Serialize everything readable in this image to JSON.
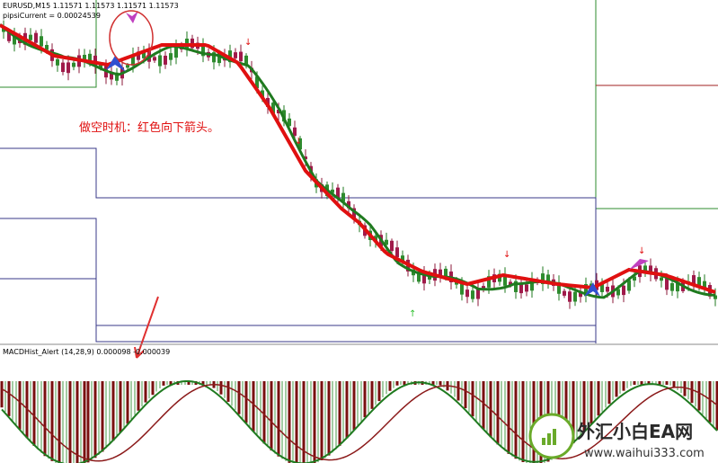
{
  "header": {
    "symbol_line": "EURUSD,M15  1.11571 1.11573 1.11571 1.11573",
    "indicator_line": "pipsiCurrent = 0.00024539"
  },
  "annotation": "做空时机：红色向下箭头。",
  "subwindow": {
    "label": "MACDHist_Alert (14,28,9)  0.000098 -0.000039"
  },
  "watermark": {
    "name": "外汇小白EA网",
    "url": "www.waihui333.com"
  }
}
